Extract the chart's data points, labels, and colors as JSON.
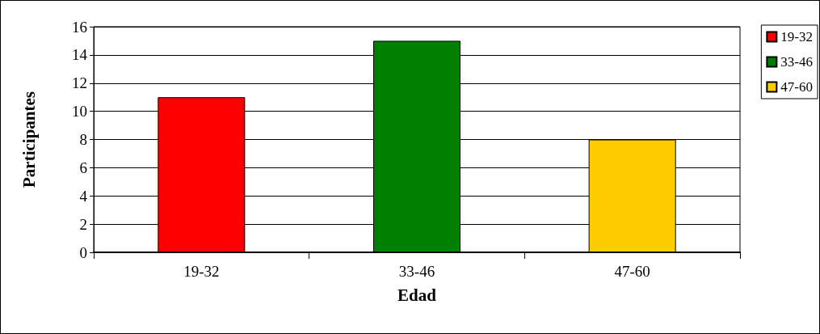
{
  "chart_data": {
    "type": "bar",
    "xlabel": "Edad",
    "ylabel": "Participantes",
    "categories": [
      "19-32",
      "33-46",
      "47-60"
    ],
    "series": [
      {
        "name": "19-32",
        "color": "#ff0000",
        "values": [
          11,
          null,
          null
        ]
      },
      {
        "name": "33-46",
        "color": "#008000",
        "values": [
          null,
          15,
          null
        ]
      },
      {
        "name": "47-60",
        "color": "#ffcc00",
        "values": [
          null,
          null,
          8
        ]
      }
    ],
    "ylim": [
      0,
      16
    ],
    "yticks": [
      0,
      2,
      4,
      6,
      8,
      10,
      12,
      14,
      16
    ],
    "grid": "y",
    "legend": "right"
  }
}
